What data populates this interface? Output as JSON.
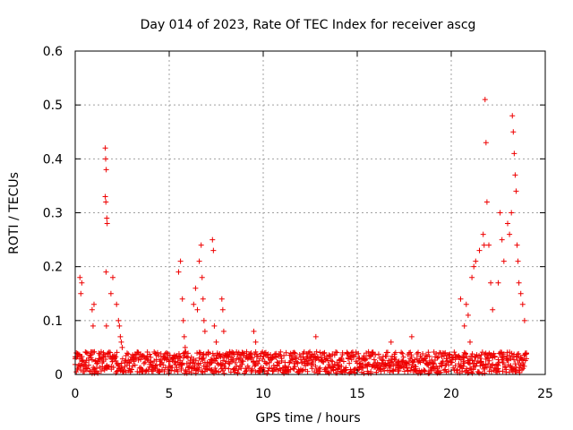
{
  "chart_data": {
    "type": "scatter",
    "title": "Day 014 of 2023, Rate Of TEC Index for receiver ascg",
    "xlabel": "GPS time / hours",
    "ylabel": "ROTI / TECUs",
    "xlim": [
      0,
      25
    ],
    "ylim": [
      0,
      0.6
    ],
    "xticks": [
      0,
      5,
      10,
      15,
      20,
      25
    ],
    "yticks": [
      0,
      0.1,
      0.2,
      0.3,
      0.4,
      0.5,
      0.6
    ],
    "xtick_labels": [
      "0",
      "5",
      "10",
      "15",
      "20",
      "25"
    ],
    "ytick_labels": [
      "0",
      "0.1",
      "0.2",
      "0.3",
      "0.4",
      "0.5",
      "0.6"
    ],
    "grid": true,
    "marker": "+",
    "color": "#ee0000",
    "series": [
      {
        "name": "ROTI",
        "x": [
          0.25,
          0.3,
          0.35,
          0.9,
          0.95,
          1.0,
          1.6,
          1.62,
          1.65,
          1.6,
          1.63,
          1.68,
          1.7,
          1.64,
          1.66,
          1.9,
          2.0,
          2.2,
          2.3,
          2.35,
          2.4,
          2.45,
          2.5,
          5.5,
          5.6,
          5.7,
          5.75,
          5.8,
          5.85,
          6.3,
          6.4,
          6.5,
          6.6,
          6.7,
          6.75,
          6.8,
          6.85,
          6.9,
          7.3,
          7.35,
          7.4,
          7.5,
          7.8,
          7.85,
          7.9,
          9.5,
          9.6,
          12.8,
          16.8,
          17.9,
          20.5,
          20.7,
          20.8,
          20.9,
          21.0,
          21.1,
          21.2,
          21.3,
          21.5,
          21.7,
          21.75,
          21.8,
          21.85,
          21.9,
          22.0,
          22.1,
          22.2,
          22.5,
          22.6,
          22.7,
          22.8,
          23.0,
          23.1,
          23.2,
          23.25,
          23.3,
          23.35,
          23.4,
          23.45,
          23.5,
          23.55,
          23.6,
          23.7,
          23.8,
          23.9
        ],
        "y": [
          0.18,
          0.15,
          0.17,
          0.12,
          0.09,
          0.13,
          0.42,
          0.4,
          0.38,
          0.33,
          0.32,
          0.29,
          0.28,
          0.19,
          0.09,
          0.15,
          0.18,
          0.13,
          0.1,
          0.09,
          0.07,
          0.06,
          0.05,
          0.19,
          0.21,
          0.14,
          0.1,
          0.07,
          0.05,
          0.13,
          0.16,
          0.12,
          0.21,
          0.24,
          0.18,
          0.14,
          0.1,
          0.08,
          0.25,
          0.23,
          0.09,
          0.06,
          0.14,
          0.12,
          0.08,
          0.08,
          0.06,
          0.07,
          0.06,
          0.07,
          0.14,
          0.09,
          0.13,
          0.11,
          0.06,
          0.18,
          0.2,
          0.21,
          0.23,
          0.26,
          0.24,
          0.51,
          0.43,
          0.32,
          0.24,
          0.17,
          0.12,
          0.17,
          0.3,
          0.25,
          0.21,
          0.28,
          0.26,
          0.3,
          0.48,
          0.45,
          0.41,
          0.37,
          0.34,
          0.24,
          0.21,
          0.17,
          0.15,
          0.13,
          0.1
        ],
        "baseline_range": [
          0.0,
          0.06
        ]
      }
    ]
  }
}
